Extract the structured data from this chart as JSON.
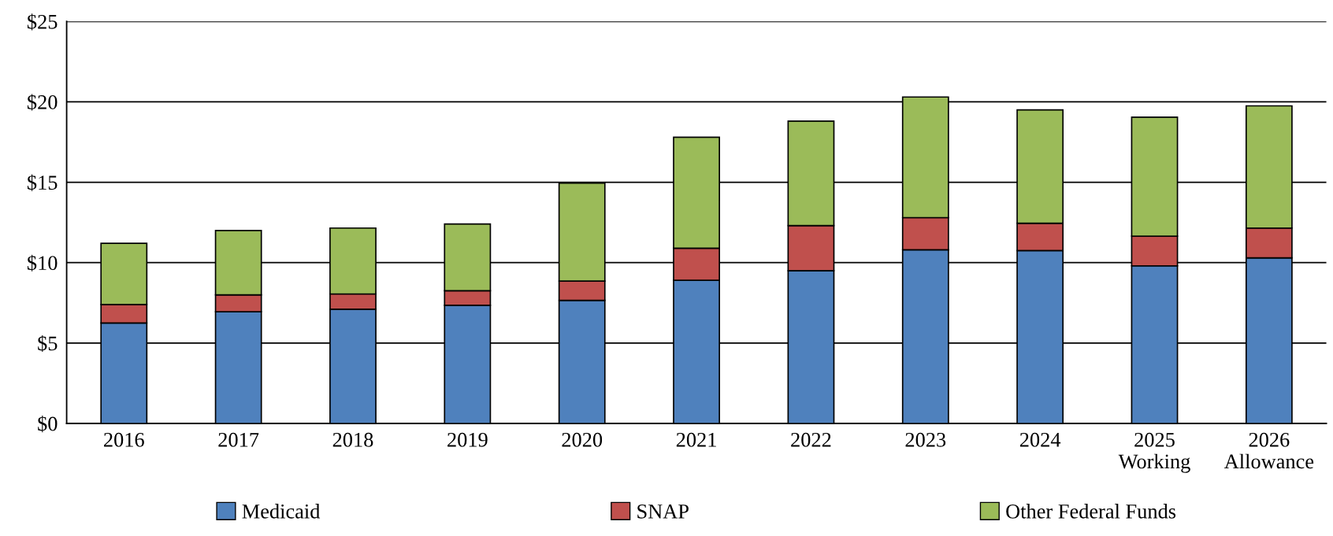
{
  "chart_data": {
    "type": "bar",
    "stacked": true,
    "categories": [
      "2016",
      "2017",
      "2018",
      "2019",
      "2020",
      "2021",
      "2022",
      "2023",
      "2024",
      "2025\nWorking",
      "2026\nAllowance"
    ],
    "series": [
      {
        "name": "Medicaid",
        "color": "#4f81bd",
        "values": [
          6.25,
          6.95,
          7.1,
          7.35,
          7.65,
          8.9,
          9.5,
          10.8,
          10.75,
          9.8,
          10.3
        ]
      },
      {
        "name": "SNAP",
        "color": "#c0504d",
        "values": [
          1.15,
          1.05,
          0.95,
          0.9,
          1.2,
          2.0,
          2.8,
          2.0,
          1.7,
          1.85,
          1.85
        ]
      },
      {
        "name": "Other Federal Funds",
        "color": "#9bbb59",
        "values": [
          3.8,
          4.0,
          4.1,
          4.15,
          6.1,
          6.9,
          6.5,
          7.5,
          7.05,
          7.4,
          7.6
        ]
      }
    ],
    "ylim": [
      0,
      25
    ],
    "yticks": [
      {
        "value": 0,
        "label": "$0"
      },
      {
        "value": 5,
        "label": "$5"
      },
      {
        "value": 10,
        "label": "$10"
      },
      {
        "value": 15,
        "label": "$15"
      },
      {
        "value": 20,
        "label": "$20"
      },
      {
        "value": 25,
        "label": "$25"
      }
    ],
    "grid": "y",
    "legend": "bottom"
  }
}
